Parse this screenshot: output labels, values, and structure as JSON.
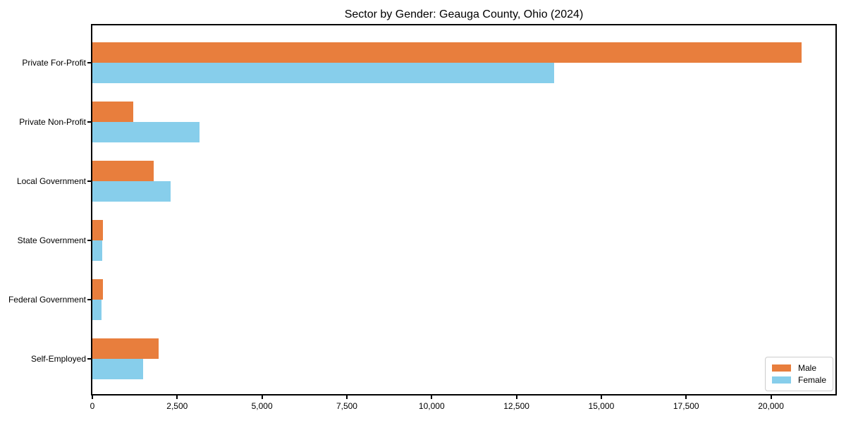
{
  "chart_data": {
    "type": "bar",
    "orientation": "horizontal",
    "title": "Sector by Gender: Geauga County, Ohio (2024)",
    "categories": [
      "Private For-Profit",
      "Private Non-Profit",
      "Local Government",
      "State Government",
      "Federal Government",
      "Self-Employed"
    ],
    "series": [
      {
        "name": "Male",
        "color": "#e87e3d",
        "values": [
          20900,
          1200,
          1800,
          310,
          320,
          1950
        ]
      },
      {
        "name": "Female",
        "color": "#87ceeb",
        "values": [
          13600,
          3150,
          2300,
          300,
          260,
          1500
        ]
      }
    ],
    "xlabel": "",
    "ylabel": "",
    "xlim": [
      0,
      21900
    ],
    "xticks": [
      0,
      2500,
      5000,
      7500,
      10000,
      12500,
      15000,
      17500,
      20000
    ],
    "xtick_labels": [
      "0",
      "2,500",
      "5,000",
      "7,500",
      "10,000",
      "12,500",
      "15,000",
      "17,500",
      "20,000"
    ],
    "grid": false,
    "legend": {
      "position": "lower right",
      "labels": [
        "Male",
        "Female"
      ]
    }
  },
  "colors": {
    "male": "#e87e3d",
    "female": "#87ceeb",
    "spine": "#000000",
    "legend_border": "#cccccc",
    "text": "#000000"
  }
}
